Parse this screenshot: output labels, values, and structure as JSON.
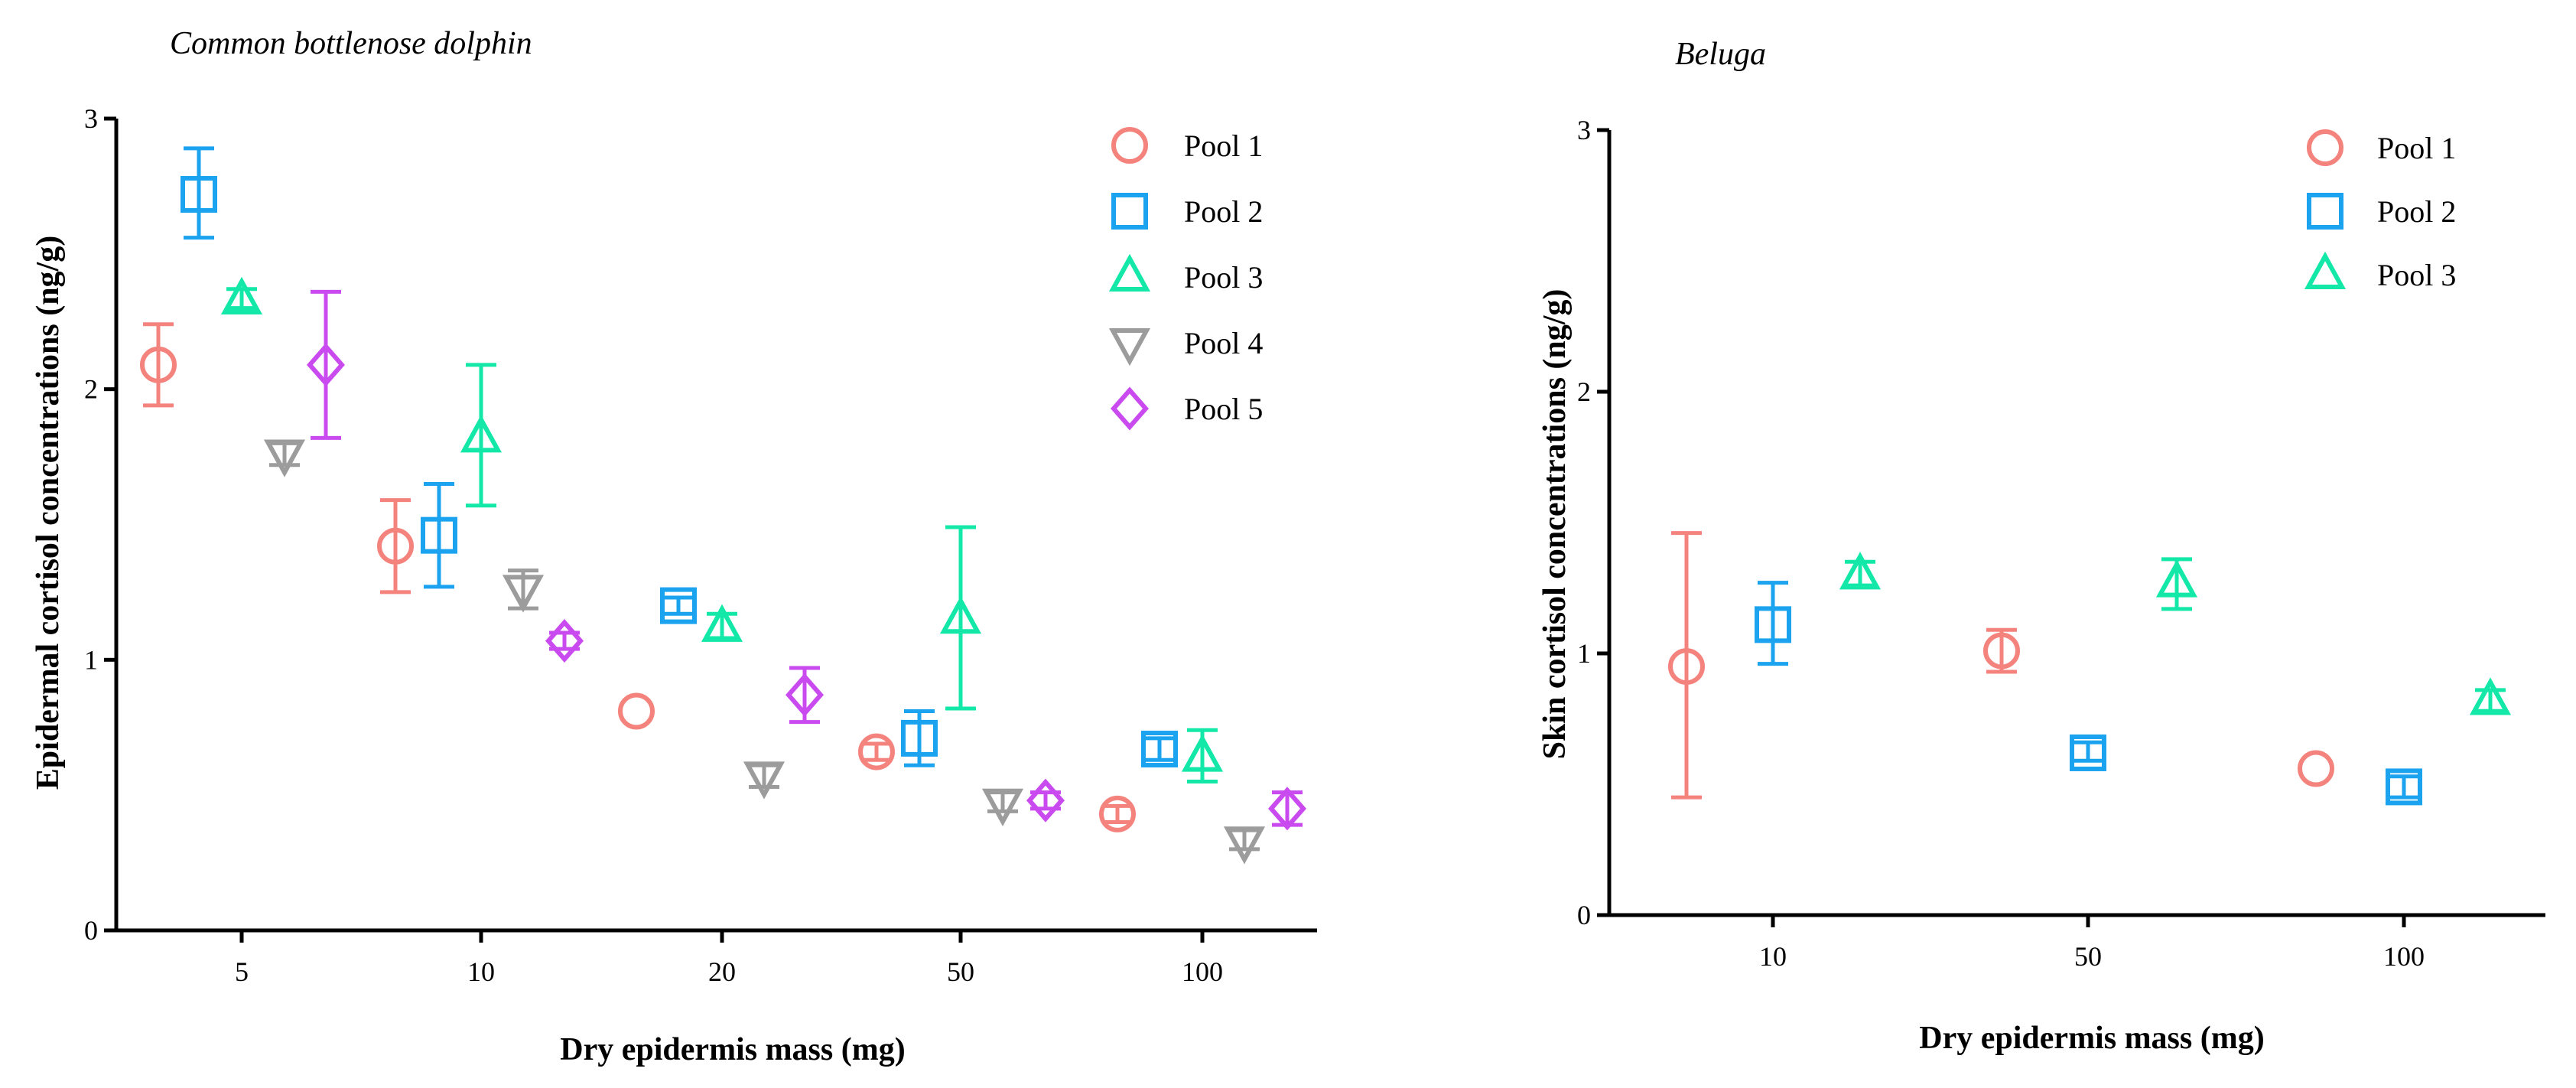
{
  "chart_data": [
    {
      "type": "scatter",
      "title": "Common bottlenose dolphin",
      "xlabel": "Dry epidermis mass (mg)",
      "ylabel": "Epidermal cortisol concentrations (ng/g)",
      "ylim": [
        0,
        3
      ],
      "yticks": [
        0,
        1,
        2,
        3
      ],
      "xticks": [
        "5",
        "10",
        "20",
        "50",
        "100"
      ],
      "xscale": "categorical",
      "legend": "top-right",
      "series": [
        {
          "name": "Pool 1",
          "color": "#F4837D",
          "marker": "circle",
          "points": [
            {
              "x": "<5",
              "y": 2.09,
              "err_low": 1.94,
              "err_high": 2.24
            },
            {
              "x": "8",
              "y": 1.42,
              "err_low": 1.25,
              "err_high": 1.59
            },
            {
              "x": "15",
              "y": 0.81,
              "err_low": 0.81,
              "err_high": 0.81
            },
            {
              "x": "35",
              "y": 0.66,
              "err_low": 0.63,
              "err_high": 0.69
            },
            {
              "x": "80",
              "y": 0.43,
              "err_low": 0.4,
              "err_high": 0.46
            }
          ]
        },
        {
          "name": "Pool 2",
          "color": "#1BA3EF",
          "marker": "square",
          "points": [
            {
              "x": "4",
              "y": 2.72,
              "err_low": 2.56,
              "err_high": 2.89
            },
            {
              "x": "9",
              "y": 1.46,
              "err_low": 1.27,
              "err_high": 1.65
            },
            {
              "x": "18",
              "y": 1.2,
              "err_low": 1.17,
              "err_high": 1.23
            },
            {
              "x": "40",
              "y": 0.71,
              "err_low": 0.61,
              "err_high": 0.81
            },
            {
              "x": "90",
              "y": 0.67,
              "err_low": 0.63,
              "err_high": 0.71
            }
          ]
        },
        {
          "name": "Pool 3",
          "color": "#13E8A8",
          "marker": "triangle-up",
          "points": [
            {
              "x": "5",
              "y": 2.33,
              "err_low": 2.3,
              "err_high": 2.37
            },
            {
              "x": "10",
              "y": 1.82,
              "err_low": 1.57,
              "err_high": 2.09
            },
            {
              "x": "20",
              "y": 1.12,
              "err_low": 1.08,
              "err_high": 1.17
            },
            {
              "x": "50",
              "y": 1.15,
              "err_low": 0.82,
              "err_high": 1.49
            },
            {
              "x": "100",
              "y": 0.64,
              "err_low": 0.55,
              "err_high": 0.74
            }
          ]
        },
        {
          "name": "Pool 4",
          "color": "#9C9C9C",
          "marker": "triangle-down",
          "points": [
            {
              "x": "6",
              "y": 1.76,
              "err_low": 1.72,
              "err_high": 1.8
            },
            {
              "x": "12",
              "y": 1.26,
              "err_low": 1.19,
              "err_high": 1.33
            },
            {
              "x": "22",
              "y": 0.57,
              "err_low": 0.53,
              "err_high": 0.61
            },
            {
              "x": "60",
              "y": 0.47,
              "err_low": 0.44,
              "err_high": 0.51
            },
            {
              "x": "110",
              "y": 0.33,
              "err_low": 0.3,
              "err_high": 0.37
            }
          ]
        },
        {
          "name": "Pool 5",
          "color": "#C94BEF",
          "marker": "diamond",
          "points": [
            {
              "x": "7",
              "y": 2.09,
              "err_low": 1.82,
              "err_high": 2.36
            },
            {
              "x": "13",
              "y": 1.07,
              "err_low": 1.04,
              "err_high": 1.1
            },
            {
              "x": "25",
              "y": 0.87,
              "err_low": 0.77,
              "err_high": 0.97
            },
            {
              "x": "65",
              "y": 0.48,
              "err_low": 0.45,
              "err_high": 0.51
            },
            {
              "x": ">100",
              "y": 0.45,
              "err_low": 0.39,
              "err_high": 0.51
            }
          ]
        }
      ]
    },
    {
      "type": "scatter",
      "title": "Beluga",
      "xlabel": "Dry epidermis mass (mg)",
      "ylabel": "Skin cortisol concentrations (ng/g)",
      "ylim": [
        0,
        3
      ],
      "yticks": [
        0,
        1,
        2,
        3
      ],
      "xticks": [
        "10",
        "50",
        "100"
      ],
      "xscale": "categorical",
      "legend": "top-right",
      "series": [
        {
          "name": "Pool 1",
          "color": "#F4837D",
          "marker": "circle",
          "points": [
            {
              "x": "<10",
              "y": 0.95,
              "err_low": 0.45,
              "err_high": 1.46
            },
            {
              "x": "30",
              "y": 1.01,
              "err_low": 0.93,
              "err_high": 1.09
            },
            {
              "x": "85",
              "y": 0.56,
              "err_low": 0.56,
              "err_high": 0.56
            }
          ]
        },
        {
          "name": "Pool 2",
          "color": "#1BA3EF",
          "marker": "square",
          "points": [
            {
              "x": "10",
              "y": 1.11,
              "err_low": 0.96,
              "err_high": 1.27
            },
            {
              "x": "50",
              "y": 0.62,
              "err_low": 0.59,
              "err_high": 0.66
            },
            {
              "x": "100",
              "y": 0.49,
              "err_low": 0.45,
              "err_high": 0.53
            }
          ]
        },
        {
          "name": "Pool 3",
          "color": "#13E8A8",
          "marker": "triangle-up",
          "points": [
            {
              "x": "15",
              "y": 1.3,
              "err_low": 1.26,
              "err_high": 1.35
            },
            {
              "x": "60",
              "y": 1.27,
              "err_low": 1.17,
              "err_high": 1.36
            },
            {
              "x": ">100",
              "y": 0.82,
              "err_low": 0.78,
              "err_high": 0.86
            }
          ]
        }
      ]
    }
  ]
}
